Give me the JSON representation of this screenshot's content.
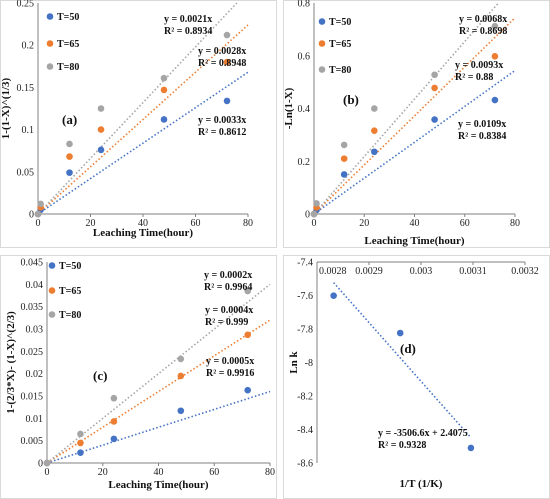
{
  "chart_data": [
    {
      "type": "scatter",
      "panel_label": "(a)",
      "xlabel": "Leaching Time(hour)",
      "ylabel": "1-(1-X)^(1/3)",
      "xlim": [
        0,
        80
      ],
      "ylim": [
        0,
        0.25
      ],
      "xticks": [
        0,
        20,
        40,
        60,
        80
      ],
      "yticks": [
        0,
        0.05,
        0.1,
        0.15,
        0.2,
        0.25
      ],
      "ytick_labels": [
        "0",
        "0.05",
        "0.1",
        "0.15",
        "0.2",
        "0.25"
      ],
      "legend_position": "top-left",
      "series": [
        {
          "name": "T=50",
          "color": "#4472C4",
          "x": [
            0,
            1,
            12,
            24,
            48,
            72
          ],
          "y": [
            0,
            0.005,
            0.049,
            0.076,
            0.112,
            0.134
          ],
          "fit": {
            "slope": 0.0021,
            "equation": "y = 0.0021x",
            "r2": "R² = 0.8934"
          }
        },
        {
          "name": "T=65",
          "color": "#ED7D31",
          "x": [
            0,
            1,
            12,
            24,
            48,
            72
          ],
          "y": [
            0,
            0.008,
            0.068,
            0.1,
            0.147,
            0.18
          ],
          "fit": {
            "slope": 0.0028,
            "equation": "y = 0.0028x",
            "r2": "R² = 0.8948"
          }
        },
        {
          "name": "T=80",
          "color": "#A5A5A5",
          "x": [
            0,
            1,
            12,
            24,
            48,
            72
          ],
          "y": [
            0,
            0.012,
            0.083,
            0.125,
            0.161,
            0.212
          ],
          "fit": {
            "slope": 0.0033,
            "equation": "y = 0.0033x",
            "r2": "R² = 0.8612"
          }
        }
      ]
    },
    {
      "type": "scatter",
      "panel_label": "(b)",
      "xlabel": "Leaching Time(hour)",
      "ylabel": "-Ln(1-X)",
      "xlim": [
        0,
        80
      ],
      "ylim": [
        0,
        0.8
      ],
      "xticks": [
        0,
        20,
        40,
        60,
        80
      ],
      "yticks": [
        0,
        0.2,
        0.4,
        0.6,
        0.8
      ],
      "ytick_labels": [
        "0",
        "0.2",
        "0.4",
        "0.6",
        "0.8"
      ],
      "legend_position": "top-left",
      "series": [
        {
          "name": "T=50",
          "color": "#4472C4",
          "x": [
            0,
            1,
            12,
            24,
            48,
            72
          ],
          "y": [
            0,
            0.015,
            0.15,
            0.236,
            0.358,
            0.432
          ],
          "fit": {
            "slope": 0.0068,
            "equation": "y = 0.0068x",
            "r2": "R² = 0.8698"
          }
        },
        {
          "name": "T=65",
          "color": "#ED7D31",
          "x": [
            0,
            1,
            12,
            24,
            48,
            72
          ],
          "y": [
            0,
            0.025,
            0.21,
            0.316,
            0.478,
            0.598
          ],
          "fit": {
            "slope": 0.0093,
            "equation": "y = 0.0093x",
            "r2": "R² = 0.88"
          }
        },
        {
          "name": "T=80",
          "color": "#A5A5A5",
          "x": [
            0,
            1,
            12,
            24,
            48,
            72
          ],
          "y": [
            0,
            0.04,
            0.262,
            0.4,
            0.528,
            0.712
          ],
          "fit": {
            "slope": 0.0109,
            "equation": "y = 0.0109x",
            "r2": "R² = 0.8384"
          }
        }
      ]
    },
    {
      "type": "scatter",
      "panel_label": "(c)",
      "xlabel": "Leaching Time(hour)",
      "ylabel": "1-(2/3*X)- (1-X)^(2/3)",
      "xlim": [
        0,
        80
      ],
      "ylim": [
        0,
        0.045
      ],
      "xticks": [
        0,
        20,
        40,
        60,
        80
      ],
      "yticks": [
        0,
        0.005,
        0.01,
        0.015,
        0.02,
        0.025,
        0.03,
        0.035,
        0.04,
        0.045
      ],
      "ytick_labels": [
        "0",
        "0.005",
        "0.01",
        "0.015",
        "0.02",
        "0.025",
        "0.03",
        "0.035",
        "0.04",
        "0.045"
      ],
      "legend_position": "top-left",
      "series": [
        {
          "name": "T=50",
          "color": "#4472C4",
          "x": [
            0,
            12,
            24,
            48,
            72
          ],
          "y": [
            0,
            0.0023,
            0.0054,
            0.0117,
            0.0163
          ],
          "fit": {
            "slope": 0.0002,
            "equation": "y = 0.0002x",
            "r2": "R² = 0.9964"
          }
        },
        {
          "name": "T=65",
          "color": "#ED7D31",
          "x": [
            0,
            12,
            24,
            48,
            72
          ],
          "y": [
            0,
            0.0045,
            0.0093,
            0.0195,
            0.0287
          ],
          "fit": {
            "slope": 0.0004,
            "equation": "y = 0.0004x",
            "r2": "R² = 0.999"
          }
        },
        {
          "name": "T=80",
          "color": "#A5A5A5",
          "x": [
            0,
            12,
            24,
            48,
            72
          ],
          "y": [
            0,
            0.0065,
            0.0145,
            0.0233,
            0.0385
          ],
          "fit": {
            "slope": 0.0005,
            "equation": "y = 0.0005x",
            "r2": "R² = 0.9916"
          }
        }
      ]
    },
    {
      "type": "scatter",
      "panel_label": "(d)",
      "xlabel": "1/T (1/K)",
      "ylabel": "Ln k",
      "xlim": [
        0.0028,
        0.0032
      ],
      "ylim": [
        -8.6,
        -7.4
      ],
      "xticks": [
        0.0028,
        0.0029,
        0.003,
        0.0031,
        0.0032
      ],
      "xtick_labels": [
        "0.0028",
        "0.0029",
        "0.003",
        "0.0031",
        "0.0032"
      ],
      "yticks": [
        -7.4,
        -7.6,
        -7.8,
        -8,
        -8.2,
        -8.4,
        -8.6
      ],
      "ytick_labels": [
        "-7.4",
        "-7.6",
        "-7.8",
        "-8",
        "-8.2",
        "-8.4",
        "-8.6"
      ],
      "x_axis_position": "top",
      "series": [
        {
          "color": "#4472C4",
          "x": [
            0.002832,
            0.00296,
            0.003096
          ],
          "y": [
            -7.601,
            -7.824,
            -8.51
          ],
          "fit": {
            "slope": -3506.6,
            "intercept": 2.4075,
            "x_range": [
              0.002832,
              0.003096
            ],
            "equation": "y = -3506.6x + 2.4075",
            "r2": "R² = 0.9328"
          }
        }
      ]
    }
  ]
}
